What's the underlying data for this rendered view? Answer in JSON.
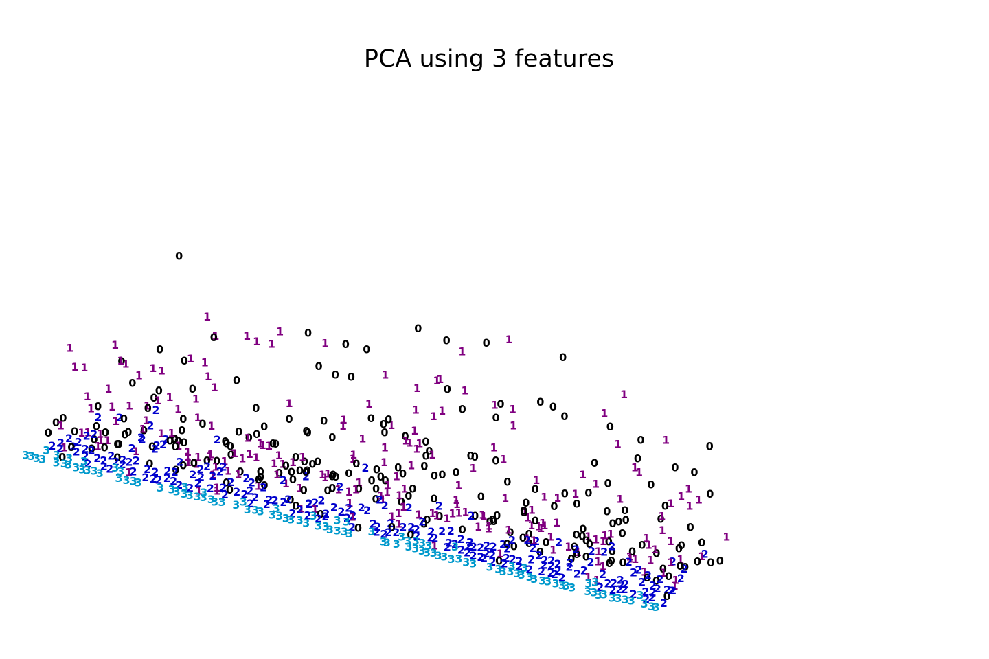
{
  "chart_data": {
    "type": "scatter",
    "title": "PCA using 3 features",
    "xlabel": "",
    "ylabel": "",
    "zlabel": "",
    "projection": "3d",
    "axes_visible": false,
    "grid": false,
    "legend": "none",
    "marker_style": "class digit drawn as text",
    "series": [
      {
        "name": "0",
        "label": "0",
        "color": "#000000"
      },
      {
        "name": "1",
        "label": "1",
        "color": "#800080"
      },
      {
        "name": "2",
        "label": "2",
        "color": "#0000cd"
      },
      {
        "name": "3",
        "label": "3",
        "color": "#0099cc"
      }
    ]
  }
}
